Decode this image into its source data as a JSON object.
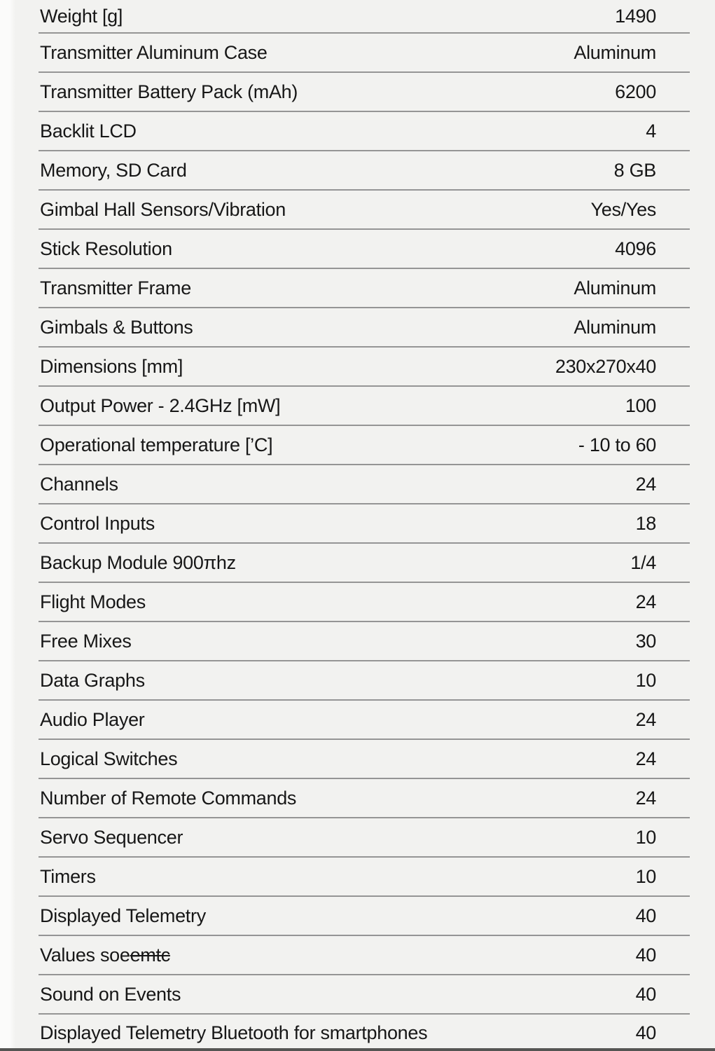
{
  "page": {
    "background_color": "#f2f2f0",
    "divider_color": "#959595",
    "text_color": "#171717"
  },
  "table": {
    "rows": [
      {
        "label": "Weight [g]",
        "value": "1490"
      },
      {
        "label": "Transmitter Aluminum Case",
        "value": "Aluminum"
      },
      {
        "label": "Transmitter Battery Pack (mAh)",
        "value": "6200"
      },
      {
        "label": "Backlit LCD",
        "value": "4"
      },
      {
        "label": "Memory, SD Card",
        "value": "8 GB"
      },
      {
        "label": "Gimbal Hall Sensors/Vibration",
        "value": "Yes/Yes"
      },
      {
        "label": "Stick Resolution",
        "value": "4096"
      },
      {
        "label": "Transmitter Frame",
        "value": "Aluminum"
      },
      {
        "label": "Gimbals & Buttons",
        "value": "Aluminum"
      },
      {
        "label": "Dimensions [mm]",
        "value": "230x270x40"
      },
      {
        "label": "Output Power - 2.4GHz [mW]",
        "value": "100"
      },
      {
        "label": "Operational temperature [’C]",
        "value": "- 10 to 60"
      },
      {
        "label": "Channels",
        "value": "24"
      },
      {
        "label": "Control Inputs",
        "value": "18"
      },
      {
        "label": "Backup Module 900πhz",
        "value": "1/4"
      },
      {
        "label": "Flight Modes",
        "value": "24"
      },
      {
        "label": "Free Mixes",
        "value": "30"
      },
      {
        "label": "Data Graphs",
        "value": "10"
      },
      {
        "label": "Audio Player",
        "value": "24"
      },
      {
        "label": "Logical Switches",
        "value": "24"
      },
      {
        "label": "Number of Remote Commands",
        "value": "24"
      },
      {
        "label": "Servo Sequencer",
        "value": "10"
      },
      {
        "label": "Timers",
        "value": "10"
      },
      {
        "label": "Displayed Telemetry",
        "value": "40"
      },
      {
        "label": "Values soe",
        "label_struck": "emtc",
        "value": "40"
      },
      {
        "label": "Sound on Events",
        "value": "40"
      },
      {
        "label": "Displayed Telemetry Bluetooth for smartphones",
        "value": "40"
      }
    ]
  }
}
